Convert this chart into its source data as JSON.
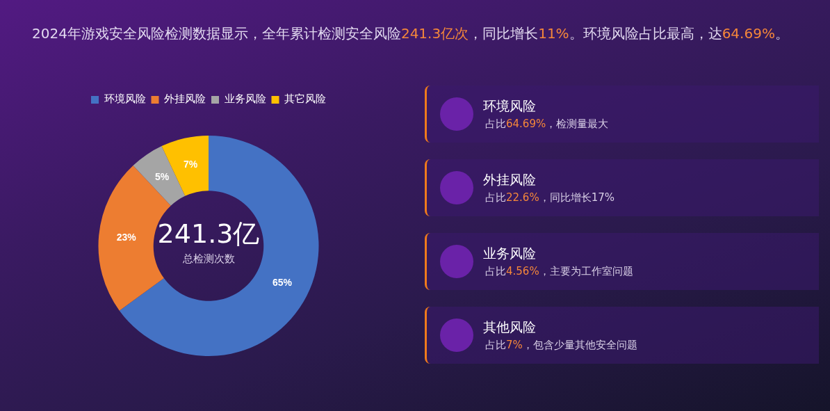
{
  "chart_data": [
    {
      "type": "donut",
      "title": "2024年游戏安全风险检测数据显示，全年累计检测安全风险241.3亿次，同比增长11%。环境风险占比最高，达64.69%。",
      "categories": [
        "环境风险",
        "外挂风险",
        "业务风险",
        "其它风险"
      ],
      "values": [
        65,
        23,
        5,
        7
      ],
      "colors": [
        "#4472c4",
        "#ed7d31",
        "#a5a5a5",
        "#ffc000"
      ],
      "value_labels": [
        "65%",
        "23%",
        "5%",
        "7%"
      ],
      "legend": "top",
      "annotations": [
        "241.3亿",
        "总检测次数"
      ]
    },
    {
      "type": "other",
      "annotations": [
        "环境风险",
        "占比64.69%，检测量最大",
        "外挂风险",
        "占比22.6%，同比增长17%",
        "业务风险",
        "占比4.56%，主要为工作室问题",
        "其他风险",
        "占比7%，包含少量其他安全问题"
      ]
    }
  ]
}
